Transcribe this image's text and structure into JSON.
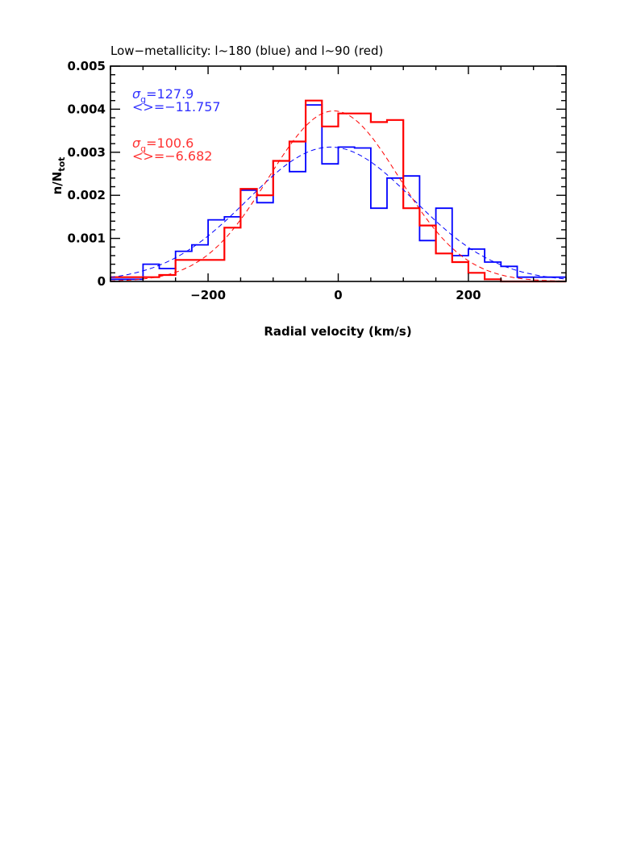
{
  "chart_data": {
    "type": "histogram",
    "title": "Low−metallicity: l~180 (blue) and l~90 (red)",
    "xlabel": "Radial velocity (km/s)",
    "ylabel": "n/N",
    "ylabel_sub": "tot",
    "xlim": [
      -350,
      350
    ],
    "ylim": [
      0,
      0.005
    ],
    "xticks": [
      -200,
      0,
      200
    ],
    "xtick_labels": [
      "−200",
      "0",
      "200"
    ],
    "yticks": [
      0,
      0.001,
      0.002,
      0.003,
      0.004,
      0.005
    ],
    "ytick_labels": [
      "0",
      "0.001",
      "0.002",
      "0.003",
      "0.004",
      "0.005"
    ],
    "grid": false,
    "bin_edges": [
      -350,
      -325,
      -300,
      -275,
      -250,
      -225,
      -200,
      -175,
      -150,
      -125,
      -100,
      -75,
      -50,
      -25,
      0,
      25,
      50,
      75,
      100,
      125,
      150,
      175,
      200,
      225,
      250,
      275,
      300,
      325,
      350
    ],
    "series": [
      {
        "name": "l~180 (blue)",
        "color": "#0000ff",
        "values": [
          5e-05,
          5e-05,
          0.0004,
          0.0003,
          0.0007,
          0.00085,
          0.00143,
          0.0015,
          0.00212,
          0.00183,
          0.0028,
          0.00255,
          0.0041,
          0.00273,
          0.00312,
          0.0031,
          0.0017,
          0.0024,
          0.00245,
          0.00095,
          0.0017,
          0.0006,
          0.00075,
          0.00045,
          0.00035,
          0.0001,
          0.0001,
          0.0001
        ],
        "gauss": {
          "sigma": 127.9,
          "mean": -11.757,
          "peak": 0.00312
        },
        "annotation": {
          "sigma_label": "=127.9",
          "mean_label": "<>=−11.757"
        }
      },
      {
        "name": "l~90 (red)",
        "color": "#ff0000",
        "values": [
          0.0001,
          0.0001,
          0.0001,
          0.00015,
          0.0005,
          0.0005,
          0.0005,
          0.00125,
          0.00215,
          0.002,
          0.0028,
          0.00325,
          0.0042,
          0.0036,
          0.0039,
          0.0039,
          0.0037,
          0.00375,
          0.0017,
          0.0013,
          0.00065,
          0.00045,
          0.0002,
          5e-05,
          0.0,
          0.0,
          0.0,
          0.0
        ],
        "gauss": {
          "sigma": 100.6,
          "mean": -6.682,
          "peak": 0.00396
        },
        "annotation": {
          "sigma_label": "=100.6",
          "mean_label": "<>=−6.682"
        }
      }
    ],
    "sigma_symbol": "σ",
    "sigma_subscript": "g"
  }
}
